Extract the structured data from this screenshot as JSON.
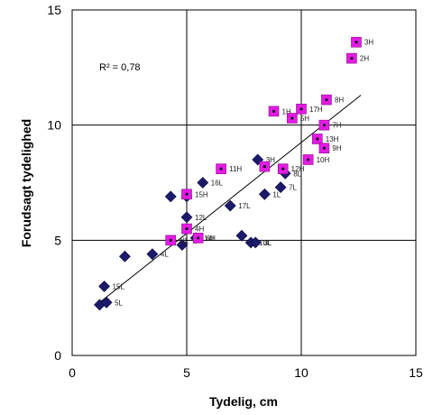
{
  "chart_data": {
    "type": "scatter",
    "xlabel": "Tydelig, cm",
    "ylabel": "Forudsagt tydelighed",
    "xlim": [
      0,
      15
    ],
    "ylim": [
      0,
      15
    ],
    "x_ticks": [
      "0",
      "5",
      "10",
      "15"
    ],
    "y_ticks": [
      "0",
      "5",
      "10",
      "15"
    ],
    "grid": true,
    "annotation": "R² =  0,78",
    "trendline": {
      "x": [
        1.2,
        12.6
      ],
      "y": [
        2.3,
        11.3
      ]
    },
    "series": [
      {
        "marker": "diamond",
        "color": "#1c1a6b",
        "points": [
          {
            "x": 1.2,
            "y": 2.2,
            "label": ""
          },
          {
            "x": 1.5,
            "y": 2.3,
            "label": "5L"
          },
          {
            "x": 1.4,
            "y": 3.0,
            "label": "15L"
          },
          {
            "x": 2.3,
            "y": 4.3,
            "label": ""
          },
          {
            "x": 3.5,
            "y": 4.4,
            "label": "4L"
          },
          {
            "x": 4.3,
            "y": 6.9,
            "label": ""
          },
          {
            "x": 4.8,
            "y": 4.8,
            "label": ""
          },
          {
            "x": 5.0,
            "y": 6.0,
            "label": "12L"
          },
          {
            "x": 5.0,
            "y": 6.9,
            "label": ""
          },
          {
            "x": 5.7,
            "y": 7.5,
            "label": "16L"
          },
          {
            "x": 6.9,
            "y": 6.5,
            "label": "17L"
          },
          {
            "x": 7.4,
            "y": 5.2,
            "label": ""
          },
          {
            "x": 7.8,
            "y": 4.9,
            "label": "10L"
          },
          {
            "x": 8.0,
            "y": 4.9,
            "label": "3L"
          },
          {
            "x": 8.1,
            "y": 8.5,
            "label": "3H"
          },
          {
            "x": 8.4,
            "y": 7.0,
            "label": "1L"
          },
          {
            "x": 9.1,
            "y": 7.3,
            "label": "7L"
          },
          {
            "x": 9.3,
            "y": 7.9,
            "label": "8L"
          },
          {
            "x": 5.4,
            "y": 5.1,
            "label": "14L"
          }
        ]
      },
      {
        "marker": "square",
        "color": "#e41be4",
        "points": [
          {
            "x": 12.4,
            "y": 13.6,
            "label": "3H"
          },
          {
            "x": 12.2,
            "y": 12.9,
            "label": "2H"
          },
          {
            "x": 11.1,
            "y": 11.1,
            "label": "8H"
          },
          {
            "x": 8.8,
            "y": 10.6,
            "label": "1H"
          },
          {
            "x": 9.6,
            "y": 10.3,
            "label": "5H"
          },
          {
            "x": 10.0,
            "y": 10.7,
            "label": "17H"
          },
          {
            "x": 11.0,
            "y": 10.0,
            "label": "7H"
          },
          {
            "x": 10.7,
            "y": 9.4,
            "label": "13H"
          },
          {
            "x": 11.0,
            "y": 9.0,
            "label": "9H"
          },
          {
            "x": 10.3,
            "y": 8.5,
            "label": "10H"
          },
          {
            "x": 6.5,
            "y": 8.1,
            "label": "11H"
          },
          {
            "x": 8.4,
            "y": 8.2,
            "label": ""
          },
          {
            "x": 9.2,
            "y": 8.1,
            "label": "12H"
          },
          {
            "x": 5.0,
            "y": 7.0,
            "label": "15H"
          },
          {
            "x": 5.0,
            "y": 5.5,
            "label": "4H"
          },
          {
            "x": 5.5,
            "y": 5.1,
            "label": "6H"
          },
          {
            "x": 4.3,
            "y": 5.0,
            "label": "1IL"
          }
        ]
      }
    ]
  }
}
